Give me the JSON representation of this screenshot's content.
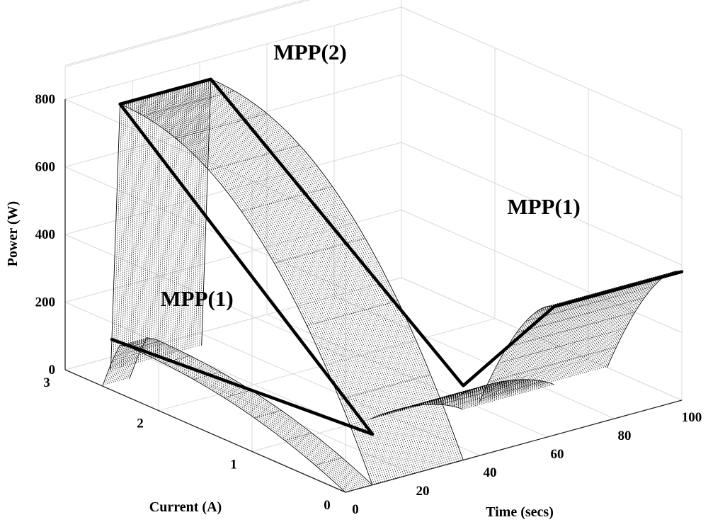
{
  "chart_data": {
    "type": "surface3d",
    "xlabel": "Time (secs)",
    "ylabel": "Current (A)",
    "zlabel": "Power (W)",
    "xlim": [
      0,
      100
    ],
    "ylim": [
      0,
      3
    ],
    "zlim": [
      0,
      800
    ],
    "xticks": [
      "0",
      "20",
      "40",
      "60",
      "80",
      "100"
    ],
    "yticks": [
      "0",
      "1",
      "2",
      "3"
    ],
    "zticks": [
      "0",
      "200",
      "400",
      "600",
      "800"
    ],
    "grid": true,
    "segments": [
      {
        "t_start": 0,
        "t_end": 8,
        "peak_power": 150,
        "peak_current": 2.4,
        "isc": 2.6
      },
      {
        "t_start": 8,
        "t_end": 35,
        "peak_power": 800,
        "peak_current": 2.7,
        "isc": 2.8
      },
      {
        "t_start": 35,
        "t_end": 62,
        "peak_power": 150,
        "peak_current": 0.0,
        "isc": 1.0
      },
      {
        "t_start": 62,
        "t_end": 100,
        "peak_power": 380,
        "peak_current": 0.0,
        "isc": 0.8
      }
    ],
    "mpp_trajectory": [
      {
        "t": 0,
        "current": 2.5,
        "power": 150
      },
      {
        "t": 8,
        "current": 0.0,
        "power": 150
      },
      {
        "t": 8,
        "current": 2.7,
        "power": 800
      },
      {
        "t": 35,
        "current": 2.7,
        "power": 800
      },
      {
        "t": 35,
        "current": 0.0,
        "power": 220
      },
      {
        "t": 62,
        "current": 0.0,
        "power": 380
      },
      {
        "t": 100,
        "current": 0.0,
        "power": 380
      }
    ],
    "annotations": [
      {
        "text": "MPP(2)"
      },
      {
        "text": "MPP(1)"
      },
      {
        "text": "MPP(1)"
      }
    ]
  }
}
